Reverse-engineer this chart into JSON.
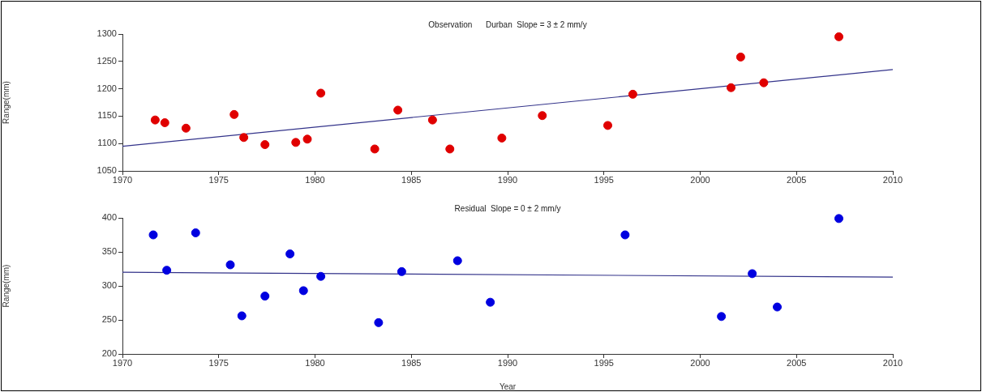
{
  "chart_data": [
    {
      "type": "scatter",
      "title": "Observation      Durban  Slope = 3 ± 2 mm/y",
      "ylabel": "Range(mm)",
      "xlim": [
        1970,
        2010
      ],
      "xticks": [
        1970,
        1975,
        1980,
        1985,
        1990,
        1995,
        2000,
        2005,
        2010
      ],
      "ylim": [
        1050,
        1300
      ],
      "yticks": [
        1050,
        1100,
        1150,
        1200,
        1250,
        1300
      ],
      "grid": false,
      "legend": false,
      "series": [
        {
          "marker": "circle",
          "color": "#e00000",
          "x": [
            1971.7,
            1972.2,
            1973.3,
            1975.8,
            1976.3,
            1977.4,
            1979.0,
            1979.6,
            1980.3,
            1983.1,
            1984.3,
            1986.1,
            1987.0,
            1989.7,
            1991.8,
            1995.2,
            1996.5,
            2001.6,
            2002.1,
            2003.3,
            2007.2
          ],
          "values": [
            1143,
            1138,
            1128,
            1153,
            1111,
            1098,
            1102,
            1108,
            1192,
            1090,
            1161,
            1143,
            1090,
            1110,
            1151,
            1133,
            1190,
            1202,
            1258,
            1211,
            1295
          ]
        },
        {
          "type": "line",
          "color": "#33338a",
          "x": [
            1970,
            2010
          ],
          "values": [
            1095,
            1235
          ]
        }
      ]
    },
    {
      "type": "scatter",
      "title": "Residual  Slope = 0 ± 2 mm/y",
      "xlabel": "Year",
      "ylabel": "Range(mm)",
      "xlim": [
        1970,
        2010
      ],
      "xticks": [
        1970,
        1975,
        1980,
        1985,
        1990,
        1995,
        2000,
        2005,
        2010
      ],
      "ylim": [
        200,
        400
      ],
      "yticks": [
        200,
        250,
        300,
        350,
        400
      ],
      "grid": false,
      "legend": false,
      "series": [
        {
          "marker": "circle",
          "color": "#0000e0",
          "x": [
            1971.6,
            1972.3,
            1973.8,
            1975.6,
            1976.2,
            1977.4,
            1978.7,
            1979.4,
            1980.3,
            1983.3,
            1984.5,
            1987.4,
            1989.1,
            1996.1,
            2001.1,
            2002.7,
            2004.0,
            2007.2
          ],
          "values": [
            375,
            323,
            378,
            331,
            256,
            285,
            347,
            293,
            314,
            246,
            321,
            337,
            276,
            375,
            255,
            318,
            269,
            399
          ]
        },
        {
          "type": "line",
          "color": "#33338a",
          "x": [
            1970,
            2010
          ],
          "values": [
            320,
            313
          ]
        }
      ]
    }
  ]
}
